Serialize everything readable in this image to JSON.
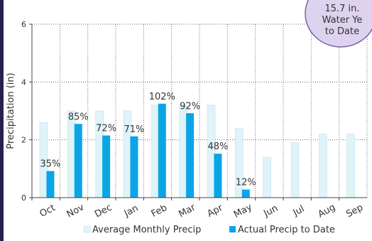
{
  "chart_data": {
    "type": "bar",
    "ylabel": "Precipitation (in)",
    "ylim": [
      0,
      6
    ],
    "yticks": [
      0,
      2,
      4,
      6
    ],
    "grid": "dotted",
    "legend_position": "bottom",
    "categories": [
      "Oct",
      "Nov",
      "Dec",
      "Jan",
      "Feb",
      "Mar",
      "Apr",
      "May",
      "Jun",
      "Jul",
      "Aug",
      "Sep"
    ],
    "series": [
      {
        "name": "Average Monthly Precip",
        "color": "#dff3f8",
        "values": [
          2.6,
          3.0,
          3.0,
          3.0,
          3.2,
          3.2,
          3.2,
          2.4,
          1.4,
          1.9,
          2.2,
          2.2
        ]
      },
      {
        "name": "Actual Precip to Date",
        "color": "#0aa5e6",
        "values": [
          0.92,
          2.55,
          2.15,
          2.12,
          3.25,
          2.92,
          1.52,
          0.28,
          null,
          null,
          null,
          null
        ],
        "labels": [
          "35%",
          "85%",
          "72%",
          "71%",
          "102%",
          "92%",
          "48%",
          "12%",
          "",
          "",
          "",
          ""
        ]
      }
    ],
    "callout": {
      "lines": [
        "15.7 in.",
        "Water Ye",
        "to Date"
      ],
      "fill": "#ddd3ee",
      "stroke": "#7b62a8"
    }
  },
  "frame_color": "#2b1f4f"
}
